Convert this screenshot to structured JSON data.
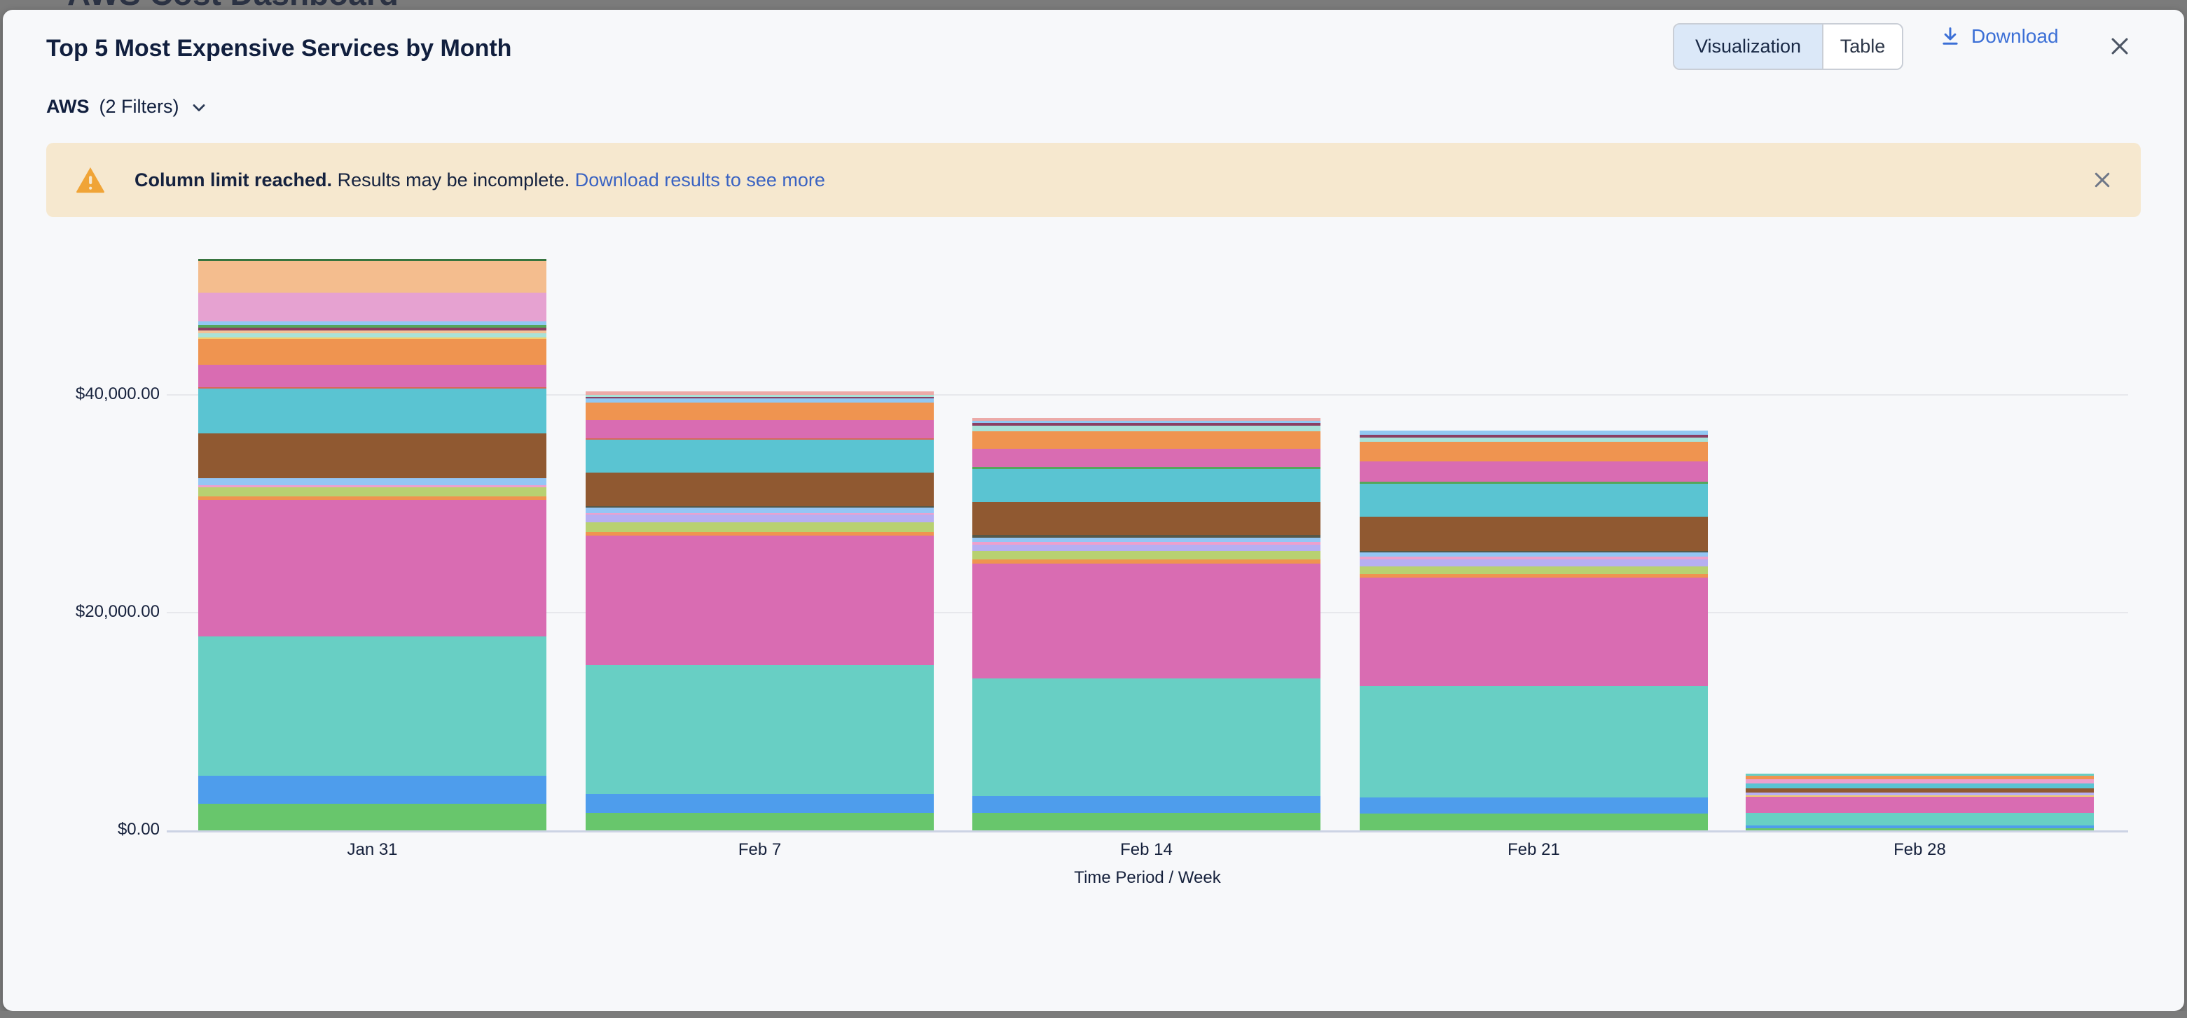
{
  "background_title": "AWS Cost Dashboard",
  "header": {
    "title": "Top 5 Most Expensive Services by Month",
    "view_toggle": {
      "options": [
        "Visualization",
        "Table"
      ],
      "active": "Visualization"
    },
    "download_label": "Download"
  },
  "filters": {
    "provider": "AWS",
    "count_label": "(2 Filters)"
  },
  "banner": {
    "bold_text": "Column limit reached.",
    "body_text": "Results may be incomplete.",
    "link_text": "Download results to see more"
  },
  "colors": {
    "card_bg": "#f7f8fa",
    "banner_bg": "#f6e8cf",
    "warning_icon": "#f0a437",
    "link_blue": "#3a63c2",
    "download_blue": "#3b6fd6",
    "toggle_active_bg": "#dbe8f8",
    "gridline": "#e7e8ec",
    "axis_line": "#ccd3e4"
  },
  "chart_data": {
    "type": "bar",
    "subtype": "stacked-vertical",
    "title": "Top 5 Most Expensive Services by Month",
    "xlabel": "Time Period / Week",
    "ylabel": "",
    "ylim": [
      0,
      53000
    ],
    "grid": "horizontal",
    "legend": "none",
    "y_ticks": [
      {
        "label": "$0.00",
        "value": 0
      },
      {
        "label": "$20,000.00",
        "value": 20000
      },
      {
        "label": "$40,000.00",
        "value": 40000
      }
    ],
    "categories": [
      "Jan 31",
      "Feb 7",
      "Feb 14",
      "Feb 21",
      "Feb 28"
    ],
    "bars": [
      {
        "label": "Jan 31",
        "total_approx_usd": 52470,
        "segments_bottom_to_top": [
          {
            "color": "#68c66c",
            "value": 2450
          },
          {
            "color": "#4e9dec",
            "value": 2570
          },
          {
            "color": "#68cfc4",
            "value": 12800
          },
          {
            "color": "#d96cb2",
            "value": 12550
          },
          {
            "color": "#ef9450",
            "value": 320
          },
          {
            "color": "#b8d171",
            "value": 840
          },
          {
            "color": "#eda0cd",
            "value": 190
          },
          {
            "color": "#94c6f5",
            "value": 640
          },
          {
            "color": "#905931",
            "value": 4100
          },
          {
            "color": "#5ac4d2",
            "value": 4100
          },
          {
            "color": "#d9685a",
            "value": 130
          },
          {
            "color": "#d96cb2",
            "value": 2050
          },
          {
            "color": "#ef9450",
            "value": 2380
          },
          {
            "color": "#f2cd6e",
            "value": 130
          },
          {
            "color": "#a9e2d8",
            "value": 390
          },
          {
            "color": "#f2c398",
            "value": 260
          },
          {
            "color": "#8a3e63",
            "value": 260
          },
          {
            "color": "#55a65b",
            "value": 260
          },
          {
            "color": "#92c8f2",
            "value": 320
          },
          {
            "color": "#e6a2d1",
            "value": 2640
          },
          {
            "color": "#f4bd8e",
            "value": 2900
          },
          {
            "color": "#37743f",
            "value": 190
          }
        ]
      },
      {
        "label": "Feb 7",
        "total_approx_usd": 40320,
        "segments_bottom_to_top": [
          {
            "color": "#68c66c",
            "value": 1600
          },
          {
            "color": "#4e9dec",
            "value": 1740
          },
          {
            "color": "#68cfc4",
            "value": 11830
          },
          {
            "color": "#d96cb2",
            "value": 11900
          },
          {
            "color": "#ef9450",
            "value": 320
          },
          {
            "color": "#b8d171",
            "value": 900
          },
          {
            "color": "#b6aff2",
            "value": 710
          },
          {
            "color": "#eda0cd",
            "value": 130
          },
          {
            "color": "#94c6f5",
            "value": 510
          },
          {
            "color": "#55584a",
            "value": 130
          },
          {
            "color": "#905931",
            "value": 3090
          },
          {
            "color": "#5ac4d2",
            "value": 3020
          },
          {
            "color": "#d9685a",
            "value": 130
          },
          {
            "color": "#d96cb2",
            "value": 1670
          },
          {
            "color": "#ef9450",
            "value": 1610
          },
          {
            "color": "#92c8f2",
            "value": 390
          },
          {
            "color": "#8a3e63",
            "value": 130
          },
          {
            "color": "#a9e2d8",
            "value": 190
          },
          {
            "color": "#ecaaa8",
            "value": 320
          }
        ]
      },
      {
        "label": "Feb 14",
        "total_approx_usd": 37870,
        "segments_bottom_to_top": [
          {
            "color": "#68c66c",
            "value": 1600
          },
          {
            "color": "#4e9dec",
            "value": 1540
          },
          {
            "color": "#68cfc4",
            "value": 10800
          },
          {
            "color": "#d96cb2",
            "value": 10550
          },
          {
            "color": "#ef9450",
            "value": 390
          },
          {
            "color": "#b8d171",
            "value": 770
          },
          {
            "color": "#b6aff2",
            "value": 580
          },
          {
            "color": "#eda0cd",
            "value": 260
          },
          {
            "color": "#94c6f5",
            "value": 390
          },
          {
            "color": "#55584a",
            "value": 260
          },
          {
            "color": "#905931",
            "value": 3020
          },
          {
            "color": "#5ac4d2",
            "value": 3020
          },
          {
            "color": "#55a65b",
            "value": 190
          },
          {
            "color": "#d96cb2",
            "value": 1670
          },
          {
            "color": "#ef9450",
            "value": 1610
          },
          {
            "color": "#a9e2d8",
            "value": 510
          },
          {
            "color": "#8a3e63",
            "value": 260
          },
          {
            "color": "#92c8f2",
            "value": 190
          },
          {
            "color": "#ecaaa8",
            "value": 260
          }
        ]
      },
      {
        "label": "Feb 21",
        "total_approx_usd": 36720,
        "segments_bottom_to_top": [
          {
            "color": "#68c66c",
            "value": 1540
          },
          {
            "color": "#4e9dec",
            "value": 1480
          },
          {
            "color": "#68cfc4",
            "value": 10220
          },
          {
            "color": "#d96cb2",
            "value": 9970
          },
          {
            "color": "#ef9450",
            "value": 320
          },
          {
            "color": "#b8d171",
            "value": 710
          },
          {
            "color": "#b6aff2",
            "value": 640
          },
          {
            "color": "#eda0cd",
            "value": 260
          },
          {
            "color": "#94c6f5",
            "value": 390
          },
          {
            "color": "#55584a",
            "value": 130
          },
          {
            "color": "#905931",
            "value": 3150
          },
          {
            "color": "#5ac4d2",
            "value": 3020
          },
          {
            "color": "#55a65b",
            "value": 190
          },
          {
            "color": "#d96cb2",
            "value": 1860
          },
          {
            "color": "#ef9450",
            "value": 1800
          },
          {
            "color": "#a9e2d8",
            "value": 390
          },
          {
            "color": "#8a3e63",
            "value": 260
          },
          {
            "color": "#92c8f2",
            "value": 390
          }
        ]
      },
      {
        "label": "Feb 28",
        "total_approx_usd": 5210,
        "segments_bottom_to_top": [
          {
            "color": "#68c66c",
            "value": 190
          },
          {
            "color": "#4e9dec",
            "value": 250
          },
          {
            "color": "#68cfc4",
            "value": 1150
          },
          {
            "color": "#d96cb2",
            "value": 1500
          },
          {
            "color": "#f2cd6e",
            "value": 120
          },
          {
            "color": "#b6aff2",
            "value": 250
          },
          {
            "color": "#905931",
            "value": 380
          },
          {
            "color": "#5ac4d2",
            "value": 500
          },
          {
            "color": "#eda0cd",
            "value": 380
          },
          {
            "color": "#ef9450",
            "value": 310
          },
          {
            "color": "#68cfc4",
            "value": 180
          }
        ]
      }
    ]
  }
}
